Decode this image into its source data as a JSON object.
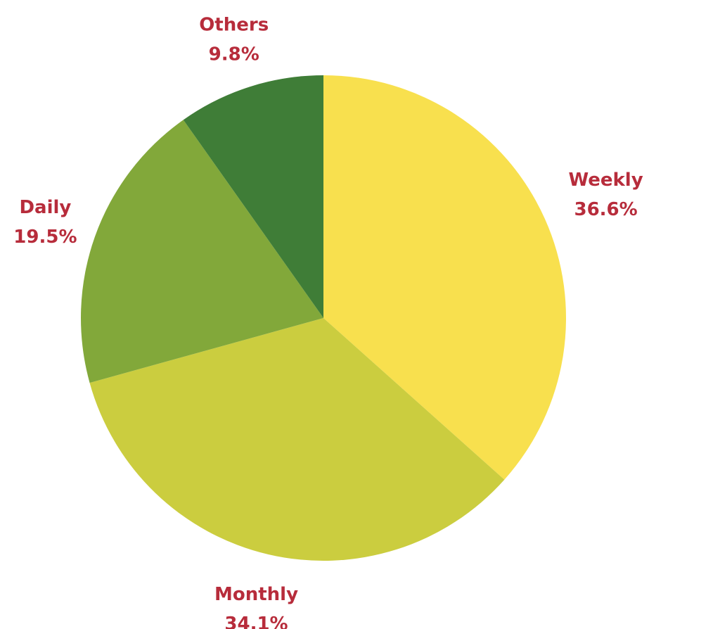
{
  "chart_data": {
    "type": "pie",
    "title": "",
    "start": "top",
    "direction": "clockwise",
    "slices": [
      {
        "name": "Weekly",
        "value": 36.6,
        "label": "36.6%",
        "color": "#f8e04e"
      },
      {
        "name": "Monthly",
        "value": 34.1,
        "label": "34.1%",
        "color": "#cbcd3f"
      },
      {
        "name": "Daily",
        "value": 19.5,
        "label": "19.5%",
        "color": "#82a83a"
      },
      {
        "name": "Others",
        "value": 9.8,
        "label": "9.8%",
        "color": "#3f7d37"
      }
    ],
    "label_color": "#b72c3b"
  }
}
